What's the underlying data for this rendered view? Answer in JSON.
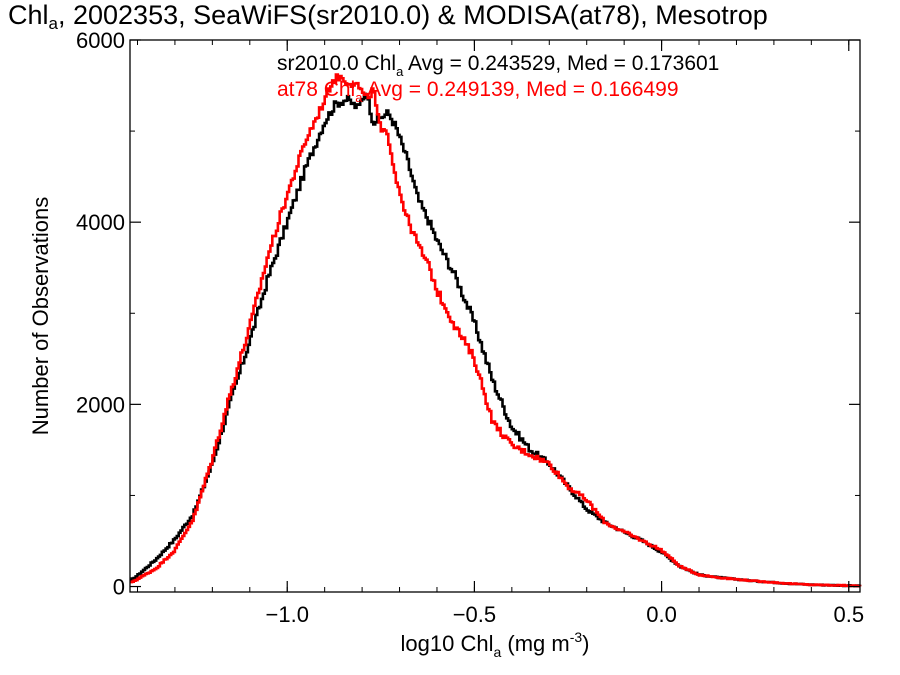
{
  "title": {
    "pre": "Chl",
    "sub": "a",
    "post": ", 2002353, SeaWiFS(sr2010.0) & MODISA(at78), Mesotrop"
  },
  "chart_data": {
    "type": "line",
    "step": true,
    "xlabel": {
      "pre": "log10 Chl",
      "sub": "a",
      "post": " (mg m",
      "sup": "-3",
      "end": ")"
    },
    "ylabel": "Number of Observations",
    "xlim": [
      -1.42,
      0.53
    ],
    "ylim": [
      -60,
      6000
    ],
    "xticks": [
      -1.0,
      -0.5,
      0.0,
      0.5
    ],
    "xtick_labels": [
      "−1.0",
      "−0.5",
      "0.0",
      "0.5"
    ],
    "yticks": [
      0,
      2000,
      4000,
      6000
    ],
    "ytick_labels": [
      "0",
      "2000",
      "4000",
      "6000"
    ],
    "grid": false,
    "legend_position": "top-right",
    "series": [
      {
        "name": "sr2010.0",
        "legend": {
          "pre": "sr2010.0 Chl",
          "sub": "a",
          "post": " Avg = 0.243529, Med = 0.173601"
        },
        "color": "#000000",
        "x": [
          -1.42,
          -1.4,
          -1.35,
          -1.3,
          -1.25,
          -1.2,
          -1.15,
          -1.1,
          -1.05,
          -1.0,
          -0.95,
          -0.9,
          -0.87,
          -0.84,
          -0.81,
          -0.79,
          -0.77,
          -0.75,
          -0.73,
          -0.71,
          -0.68,
          -0.65,
          -0.62,
          -0.6,
          -0.55,
          -0.5,
          -0.45,
          -0.4,
          -0.35,
          -0.3,
          -0.25,
          -0.2,
          -0.15,
          -0.1,
          -0.05,
          0.0,
          0.05,
          0.1,
          0.15,
          0.2,
          0.25,
          0.3,
          0.35,
          0.4,
          0.45,
          0.5,
          0.53
        ],
        "values": [
          60,
          120,
          300,
          520,
          800,
          1350,
          2050,
          2700,
          3400,
          4000,
          4600,
          5100,
          5300,
          5350,
          5250,
          5450,
          5100,
          5150,
          5200,
          5050,
          4700,
          4250,
          4000,
          3800,
          3400,
          2900,
          2250,
          1750,
          1500,
          1350,
          1100,
          850,
          700,
          600,
          500,
          380,
          220,
          130,
          100,
          80,
          60,
          45,
          30,
          20,
          15,
          10,
          5
        ]
      },
      {
        "name": "at78",
        "legend": {
          "pre": "at78 Chl",
          "sub": "a",
          "post": " Avg = 0.249139, Med = 0.166499"
        },
        "color": "#ff0000",
        "x": [
          -1.42,
          -1.4,
          -1.35,
          -1.3,
          -1.25,
          -1.2,
          -1.15,
          -1.1,
          -1.05,
          -1.0,
          -0.95,
          -0.91,
          -0.88,
          -0.86,
          -0.84,
          -0.81,
          -0.79,
          -0.77,
          -0.75,
          -0.73,
          -0.71,
          -0.68,
          -0.65,
          -0.62,
          -0.6,
          -0.55,
          -0.5,
          -0.45,
          -0.4,
          -0.35,
          -0.3,
          -0.25,
          -0.2,
          -0.15,
          -0.1,
          -0.05,
          0.0,
          0.05,
          0.1,
          0.15,
          0.2,
          0.25,
          0.3,
          0.35,
          0.4,
          0.45,
          0.5,
          0.53
        ],
        "values": [
          40,
          80,
          200,
          400,
          750,
          1400,
          2150,
          2850,
          3650,
          4300,
          4900,
          5250,
          5550,
          5600,
          5550,
          5500,
          5350,
          5450,
          5000,
          4950,
          4500,
          4050,
          3750,
          3500,
          3250,
          2850,
          2500,
          1800,
          1550,
          1450,
          1350,
          1100,
          950,
          700,
          600,
          500,
          400,
          220,
          130,
          100,
          80,
          60,
          45,
          30,
          20,
          15,
          10,
          5
        ]
      }
    ]
  }
}
